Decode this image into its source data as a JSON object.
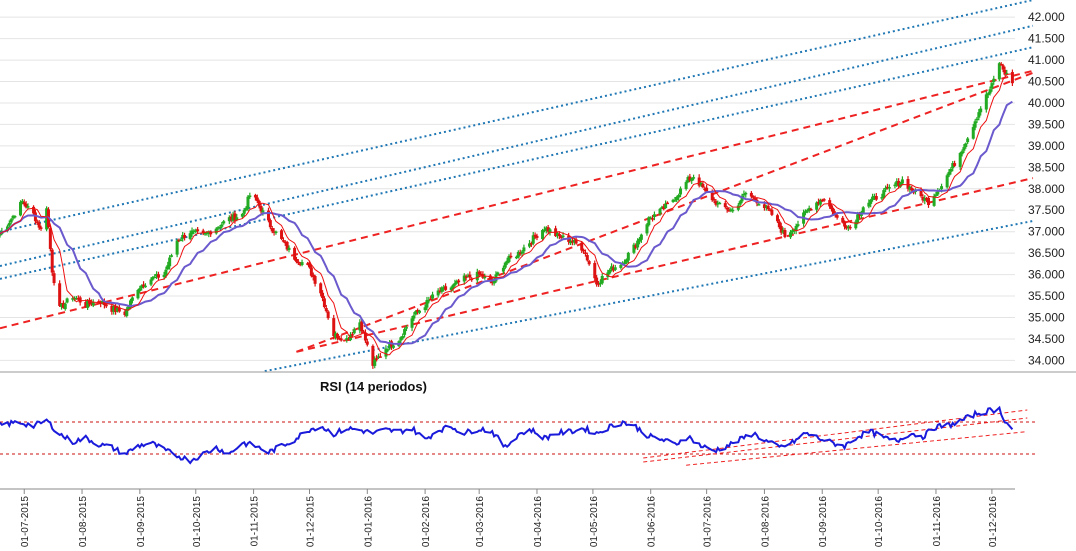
{
  "chart_data": [
    {
      "type": "candlestick",
      "ylim": [
        33800,
        42400
      ],
      "y_ticks": [
        "34.000",
        "34.500",
        "35.000",
        "35.500",
        "36.000",
        "36.500",
        "37.000",
        "37.500",
        "38.000",
        "38.500",
        "39.000",
        "39.500",
        "40.000",
        "40.500",
        "41.000",
        "41.500",
        "42.000"
      ],
      "x_range": [
        "2015-06-18",
        "2016-12-15"
      ],
      "x_ticks": [
        "01-07-2015",
        "01-08-2015",
        "01-09-2015",
        "01-10-2015",
        "01-11-2015",
        "01-12-2015",
        "01-01-2016",
        "01-02-2016",
        "01-03-2016",
        "01-04-2016",
        "01-05-2016",
        "01-06-2016",
        "01-07-2016",
        "01-08-2016",
        "01-09-2016",
        "01-10-2016",
        "01-11-2016",
        "01-12-2016"
      ],
      "grid": true,
      "colors": {
        "up": "#22aa22",
        "down": "#dd1111",
        "fast_ma": "#ee1111",
        "slow_ma": "#6a5acd",
        "red_channel": "#ee2222",
        "blue_channel": "#1f77b4"
      },
      "close_path": [
        [
          "2015-06-18",
          36950
        ],
        [
          "2015-06-24",
          37300
        ],
        [
          "2015-06-30",
          37700
        ],
        [
          "2015-07-06",
          37400
        ],
        [
          "2015-07-10",
          37050
        ],
        [
          "2015-07-13",
          37600
        ],
        [
          "2015-07-16",
          36100
        ],
        [
          "2015-07-20",
          35200
        ],
        [
          "2015-07-27",
          35500
        ],
        [
          "2015-08-03",
          35300
        ],
        [
          "2015-08-10",
          35400
        ],
        [
          "2015-08-17",
          35200
        ],
        [
          "2015-08-24",
          35100
        ],
        [
          "2015-08-31",
          35700
        ],
        [
          "2015-09-07",
          35900
        ],
        [
          "2015-09-14",
          36000
        ],
        [
          "2015-09-21",
          36800
        ],
        [
          "2015-09-28",
          37000
        ],
        [
          "2015-10-05",
          36900
        ],
        [
          "2015-10-12",
          37100
        ],
        [
          "2015-10-19",
          37300
        ],
        [
          "2015-10-26",
          37400
        ],
        [
          "2015-10-30",
          37850
        ],
        [
          "2015-11-03",
          37700
        ],
        [
          "2015-11-09",
          37200
        ],
        [
          "2015-11-16",
          36800
        ],
        [
          "2015-11-23",
          36400
        ],
        [
          "2015-11-30",
          36200
        ],
        [
          "2015-12-07",
          35600
        ],
        [
          "2015-12-14",
          34600
        ],
        [
          "2015-12-21",
          34500
        ],
        [
          "2015-12-28",
          34900
        ],
        [
          "2016-01-04",
          33900
        ],
        [
          "2016-01-11",
          34300
        ],
        [
          "2016-01-18",
          34500
        ],
        [
          "2016-01-25",
          35000
        ],
        [
          "2016-02-01",
          35300
        ],
        [
          "2016-02-08",
          35600
        ],
        [
          "2016-02-15",
          35700
        ],
        [
          "2016-02-22",
          35900
        ],
        [
          "2016-03-01",
          36000
        ],
        [
          "2016-03-08",
          35800
        ],
        [
          "2016-03-15",
          36300
        ],
        [
          "2016-03-22",
          36500
        ],
        [
          "2016-03-29",
          36800
        ],
        [
          "2016-04-05",
          37100
        ],
        [
          "2016-04-12",
          36900
        ],
        [
          "2016-04-19",
          36800
        ],
        [
          "2016-04-26",
          36600
        ],
        [
          "2016-05-03",
          35800
        ],
        [
          "2016-05-10",
          36100
        ],
        [
          "2016-05-17",
          36300
        ],
        [
          "2016-05-24",
          36700
        ],
        [
          "2016-05-31",
          37300
        ],
        [
          "2016-06-07",
          37500
        ],
        [
          "2016-06-14",
          37800
        ],
        [
          "2016-06-21",
          38200
        ],
        [
          "2016-06-24",
          38300
        ],
        [
          "2016-07-01",
          37900
        ],
        [
          "2016-07-08",
          37600
        ],
        [
          "2016-07-15",
          37500
        ],
        [
          "2016-07-22",
          37900
        ],
        [
          "2016-07-29",
          37700
        ],
        [
          "2016-08-05",
          37400
        ],
        [
          "2016-08-12",
          36900
        ],
        [
          "2016-08-19",
          37200
        ],
        [
          "2016-08-26",
          37600
        ],
        [
          "2016-09-02",
          37800
        ],
        [
          "2016-09-09",
          37300
        ],
        [
          "2016-09-16",
          37100
        ],
        [
          "2016-09-23",
          37600
        ],
        [
          "2016-09-30",
          37800
        ],
        [
          "2016-10-07",
          38000
        ],
        [
          "2016-10-14",
          38200
        ],
        [
          "2016-10-21",
          37900
        ],
        [
          "2016-10-28",
          37700
        ],
        [
          "2016-11-04",
          38100
        ],
        [
          "2016-11-11",
          38600
        ],
        [
          "2016-11-18",
          39200
        ],
        [
          "2016-11-25",
          39900
        ],
        [
          "2016-12-01",
          40400
        ],
        [
          "2016-12-05",
          40950
        ],
        [
          "2016-12-08",
          40700
        ],
        [
          "2016-12-12",
          40500
        ]
      ],
      "channel_lines": [
        {
          "style": "red",
          "points": [
            [
              "2015-06-18",
              34750
            ],
            [
              "2016-12-23",
              40750
            ]
          ]
        },
        {
          "style": "red",
          "points": [
            [
              "2015-11-24",
              34200
            ],
            [
              "2016-12-23",
              40700
            ]
          ]
        },
        {
          "style": "red",
          "points": [
            [
              "2015-11-24",
              34200
            ],
            [
              "2016-12-23",
              38250
            ]
          ]
        },
        {
          "style": "blue",
          "points": [
            [
              "2015-06-18",
              37000
            ],
            [
              "2016-12-23",
              42400
            ]
          ]
        },
        {
          "style": "blue",
          "points": [
            [
              "2015-06-18",
              36200
            ],
            [
              "2016-12-23",
              41800
            ]
          ]
        },
        {
          "style": "blue",
          "points": [
            [
              "2015-06-18",
              35900
            ],
            [
              "2016-12-23",
              41300
            ]
          ]
        },
        {
          "style": "blue",
          "points": [
            [
              "2015-11-07",
              33750
            ],
            [
              "2016-12-23",
              37250
            ]
          ]
        }
      ]
    },
    {
      "type": "line",
      "title": "RSI (14 periodos)",
      "ylim": [
        0,
        100
      ],
      "levels": [
        70,
        30
      ],
      "series": [
        {
          "values": [
            [
              "2015-06-18",
              66
            ],
            [
              "2015-06-28",
              70
            ],
            [
              "2015-07-06",
              65
            ],
            [
              "2015-07-13",
              72
            ],
            [
              "2015-07-20",
              55
            ],
            [
              "2015-07-27",
              45
            ],
            [
              "2015-08-03",
              50
            ],
            [
              "2015-08-10",
              42
            ],
            [
              "2015-08-17",
              38
            ],
            [
              "2015-08-24",
              30
            ],
            [
              "2015-08-31",
              40
            ],
            [
              "2015-09-07",
              44
            ],
            [
              "2015-09-14",
              35
            ],
            [
              "2015-09-21",
              28
            ],
            [
              "2015-09-28",
              22
            ],
            [
              "2015-10-05",
              30
            ],
            [
              "2015-10-12",
              38
            ],
            [
              "2015-10-19",
              30
            ],
            [
              "2015-10-26",
              44
            ],
            [
              "2015-11-02",
              40
            ],
            [
              "2015-11-09",
              32
            ],
            [
              "2015-11-16",
              40
            ],
            [
              "2015-11-23",
              48
            ],
            [
              "2015-11-30",
              60
            ],
            [
              "2015-12-07",
              65
            ],
            [
              "2015-12-14",
              55
            ],
            [
              "2015-12-21",
              62
            ],
            [
              "2015-12-28",
              60
            ],
            [
              "2016-01-04",
              56
            ],
            [
              "2016-01-11",
              60
            ],
            [
              "2016-01-18",
              58
            ],
            [
              "2016-01-25",
              62
            ],
            [
              "2016-02-01",
              48
            ],
            [
              "2016-02-08",
              60
            ],
            [
              "2016-02-15",
              64
            ],
            [
              "2016-02-22",
              56
            ],
            [
              "2016-03-01",
              62
            ],
            [
              "2016-03-08",
              58
            ],
            [
              "2016-03-15",
              38
            ],
            [
              "2016-03-22",
              55
            ],
            [
              "2016-03-29",
              60
            ],
            [
              "2016-04-05",
              50
            ],
            [
              "2016-04-12",
              56
            ],
            [
              "2016-04-19",
              58
            ],
            [
              "2016-04-26",
              62
            ],
            [
              "2016-05-03",
              56
            ],
            [
              "2016-05-10",
              64
            ],
            [
              "2016-05-17",
              70
            ],
            [
              "2016-05-24",
              64
            ],
            [
              "2016-05-31",
              52
            ],
            [
              "2016-06-07",
              48
            ],
            [
              "2016-06-14",
              42
            ],
            [
              "2016-06-21",
              52
            ],
            [
              "2016-06-28",
              40
            ],
            [
              "2016-07-05",
              34
            ],
            [
              "2016-07-12",
              40
            ],
            [
              "2016-07-19",
              48
            ],
            [
              "2016-07-26",
              56
            ],
            [
              "2016-08-02",
              46
            ],
            [
              "2016-08-09",
              38
            ],
            [
              "2016-08-16",
              44
            ],
            [
              "2016-08-23",
              56
            ],
            [
              "2016-08-30",
              50
            ],
            [
              "2016-09-06",
              44
            ],
            [
              "2016-09-13",
              40
            ],
            [
              "2016-09-20",
              52
            ],
            [
              "2016-09-27",
              58
            ],
            [
              "2016-10-04",
              50
            ],
            [
              "2016-10-11",
              46
            ],
            [
              "2016-10-18",
              56
            ],
            [
              "2016-10-25",
              52
            ],
            [
              "2016-11-01",
              64
            ],
            [
              "2016-11-08",
              66
            ],
            [
              "2016-11-15",
              72
            ],
            [
              "2016-11-22",
              80
            ],
            [
              "2016-11-29",
              84
            ],
            [
              "2016-12-05",
              86
            ],
            [
              "2016-12-08",
              72
            ],
            [
              "2016-12-12",
              60
            ]
          ]
        }
      ],
      "trend_lines": [
        {
          "points": [
            [
              "2016-05-28",
              25
            ],
            [
              "2016-12-20",
              85
            ]
          ]
        },
        {
          "points": [
            [
              "2016-05-28",
              20
            ],
            [
              "2016-12-20",
              75
            ]
          ]
        },
        {
          "points": [
            [
              "2016-06-20",
              16
            ],
            [
              "2016-12-20",
              58
            ]
          ]
        }
      ]
    }
  ]
}
